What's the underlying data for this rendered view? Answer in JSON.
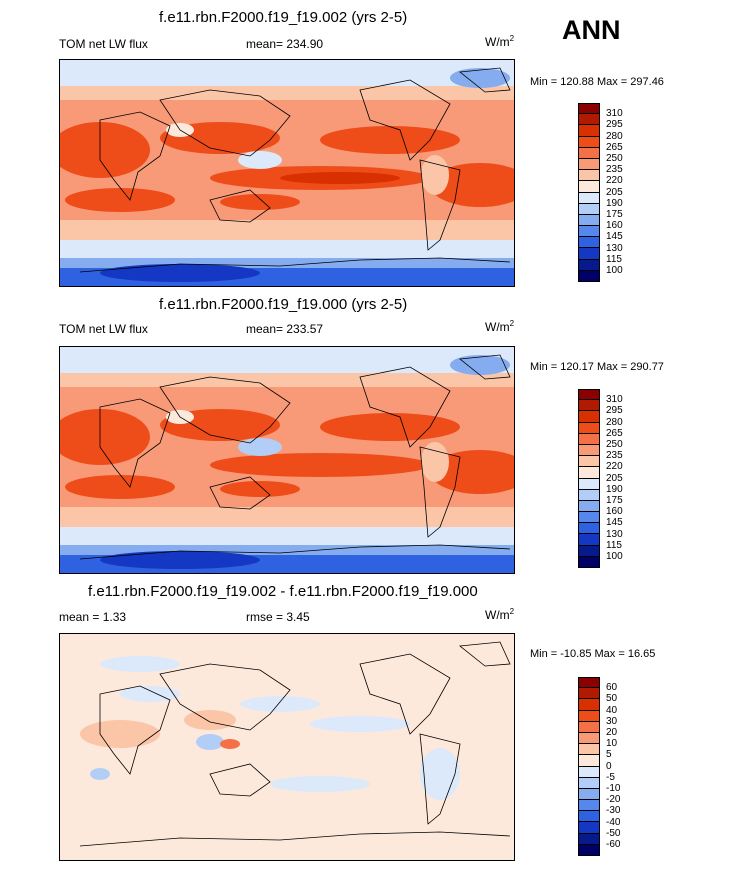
{
  "figure": {
    "season": "ANN"
  },
  "panels": [
    {
      "title": "f.e11.rbn.F2000.f19_f19.002 (yrs 2-5)",
      "left": "TOM net LW flux",
      "middle": "mean= 234.90",
      "units": "W/m",
      "units_sup": "2",
      "minmax": "Min = 120.88 Max = 297.46"
    },
    {
      "title": "f.e11.rbn.F2000.f19_f19.000 (yrs 2-5)",
      "left": "TOM net LW flux",
      "middle": "mean= 233.57",
      "units": "W/m",
      "units_sup": "2",
      "minmax": "Min = 120.17 Max = 290.77"
    },
    {
      "title": "f.e11.rbn.F2000.f19_f19.002 - f.e11.rbn.F2000.f19_f19.000",
      "left": "mean =   1.33",
      "middle": "rmse =   3.45",
      "units": "W/m",
      "units_sup": "2",
      "minmax": "Min = -10.85 Max =  16.65"
    }
  ],
  "chart_data": [
    {
      "type": "heatmap",
      "title": "f.e11.rbn.F2000.f19_f19.002 (yrs 2-5)",
      "variable": "TOM net LW flux",
      "mean": 234.9,
      "min": 120.88,
      "max": 297.46,
      "units": "W/m2",
      "colorbar_levels": [
        310,
        295,
        280,
        265,
        250,
        235,
        220,
        205,
        190,
        175,
        160,
        145,
        130,
        115,
        100
      ]
    },
    {
      "type": "heatmap",
      "title": "f.e11.rbn.F2000.f19_f19.000 (yrs 2-5)",
      "variable": "TOM net LW flux",
      "mean": 233.57,
      "min": 120.17,
      "max": 290.77,
      "units": "W/m2",
      "colorbar_levels": [
        310,
        295,
        280,
        265,
        250,
        235,
        220,
        205,
        190,
        175,
        160,
        145,
        130,
        115,
        100
      ]
    },
    {
      "type": "heatmap",
      "title": "f.e11.rbn.F2000.f19_f19.002 - f.e11.rbn.F2000.f19_f19.000",
      "mean": 1.33,
      "rmse": 3.45,
      "min": -10.85,
      "max": 16.65,
      "units": "W/m2",
      "colorbar_levels": [
        60,
        50,
        40,
        30,
        20,
        10,
        5,
        0,
        -5,
        -10,
        -20,
        -30,
        -40,
        -50,
        -60
      ]
    }
  ],
  "colors": {
    "abs_bar": [
      "#8b0000",
      "#b01a00",
      "#d83000",
      "#ee4d1a",
      "#f47148",
      "#f89a78",
      "#fbc5a8",
      "#fde9dc",
      "#dce9fb",
      "#b3cef6",
      "#86acf0",
      "#5687ea",
      "#2f62e0",
      "#1538c4",
      "#061a8c",
      "#000066"
    ],
    "diff_bar": [
      "#8b0000",
      "#b01a00",
      "#d83000",
      "#ee4d1a",
      "#f47148",
      "#f89a78",
      "#fbc5a8",
      "#fde9dc",
      "#dce9fb",
      "#b3cef6",
      "#86acf0",
      "#5687ea",
      "#2f62e0",
      "#1538c4",
      "#061a8c",
      "#000066"
    ]
  }
}
